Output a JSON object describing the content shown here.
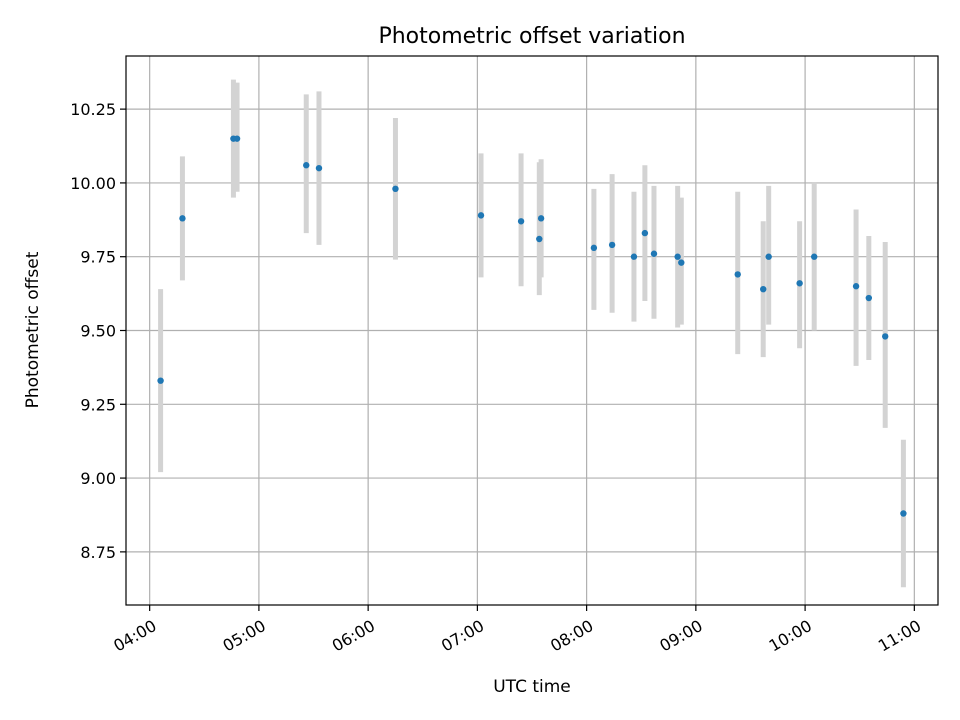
{
  "chart_data": {
    "type": "scatter",
    "title": "Photometric offset variation",
    "xlabel": "UTC time",
    "ylabel": "Photometric offset",
    "x_ticks": [
      "04:00",
      "05:00",
      "06:00",
      "07:00",
      "08:00",
      "09:00",
      "10:00",
      "11:00"
    ],
    "y_ticks": [
      "8.75",
      "9.00",
      "9.25",
      "9.50",
      "9.75",
      "10.00",
      "10.25"
    ],
    "xlim": [
      "03:47",
      "11:13"
    ],
    "ylim": [
      8.57,
      10.43
    ],
    "grid": true,
    "colors": {
      "point": "#1f77b4",
      "errorbar": "#d3d3d3"
    },
    "points": [
      {
        "x": "04:06",
        "y": 9.33,
        "y_low": 9.02,
        "y_high": 9.64
      },
      {
        "x": "04:18",
        "y": 9.88,
        "y_low": 9.67,
        "y_high": 10.09
      },
      {
        "x": "04:46",
        "y": 10.15,
        "y_low": 9.95,
        "y_high": 10.35
      },
      {
        "x": "04:48",
        "y": 10.15,
        "y_low": 9.97,
        "y_high": 10.34
      },
      {
        "x": "05:26",
        "y": 10.06,
        "y_low": 9.83,
        "y_high": 10.3
      },
      {
        "x": "05:33",
        "y": 10.05,
        "y_low": 9.79,
        "y_high": 10.31
      },
      {
        "x": "06:15",
        "y": 9.98,
        "y_low": 9.74,
        "y_high": 10.22
      },
      {
        "x": "07:02",
        "y": 9.89,
        "y_low": 9.68,
        "y_high": 10.1
      },
      {
        "x": "07:24",
        "y": 9.87,
        "y_low": 9.65,
        "y_high": 10.1
      },
      {
        "x": "07:34",
        "y": 9.81,
        "y_low": 9.62,
        "y_high": 10.07
      },
      {
        "x": "07:35",
        "y": 9.88,
        "y_low": 9.68,
        "y_high": 10.08
      },
      {
        "x": "08:04",
        "y": 9.78,
        "y_low": 9.57,
        "y_high": 9.98
      },
      {
        "x": "08:14",
        "y": 9.79,
        "y_low": 9.56,
        "y_high": 10.03
      },
      {
        "x": "08:26",
        "y": 9.75,
        "y_low": 9.53,
        "y_high": 9.97
      },
      {
        "x": "08:32",
        "y": 9.83,
        "y_low": 9.6,
        "y_high": 10.06
      },
      {
        "x": "08:37",
        "y": 9.76,
        "y_low": 9.54,
        "y_high": 9.99
      },
      {
        "x": "08:50",
        "y": 9.75,
        "y_low": 9.51,
        "y_high": 9.99
      },
      {
        "x": "08:52",
        "y": 9.73,
        "y_low": 9.52,
        "y_high": 9.95
      },
      {
        "x": "09:23",
        "y": 9.69,
        "y_low": 9.42,
        "y_high": 9.97
      },
      {
        "x": "09:37",
        "y": 9.64,
        "y_low": 9.41,
        "y_high": 9.87
      },
      {
        "x": "09:40",
        "y": 9.75,
        "y_low": 9.52,
        "y_high": 9.99
      },
      {
        "x": "09:57",
        "y": 9.66,
        "y_low": 9.44,
        "y_high": 9.87
      },
      {
        "x": "10:05",
        "y": 9.75,
        "y_low": 9.5,
        "y_high": 10.0
      },
      {
        "x": "10:28",
        "y": 9.65,
        "y_low": 9.38,
        "y_high": 9.91
      },
      {
        "x": "10:35",
        "y": 9.61,
        "y_low": 9.4,
        "y_high": 9.82
      },
      {
        "x": "10:44",
        "y": 9.48,
        "y_low": 9.17,
        "y_high": 9.8
      },
      {
        "x": "10:54",
        "y": 8.88,
        "y_low": 8.63,
        "y_high": 9.13
      }
    ]
  }
}
